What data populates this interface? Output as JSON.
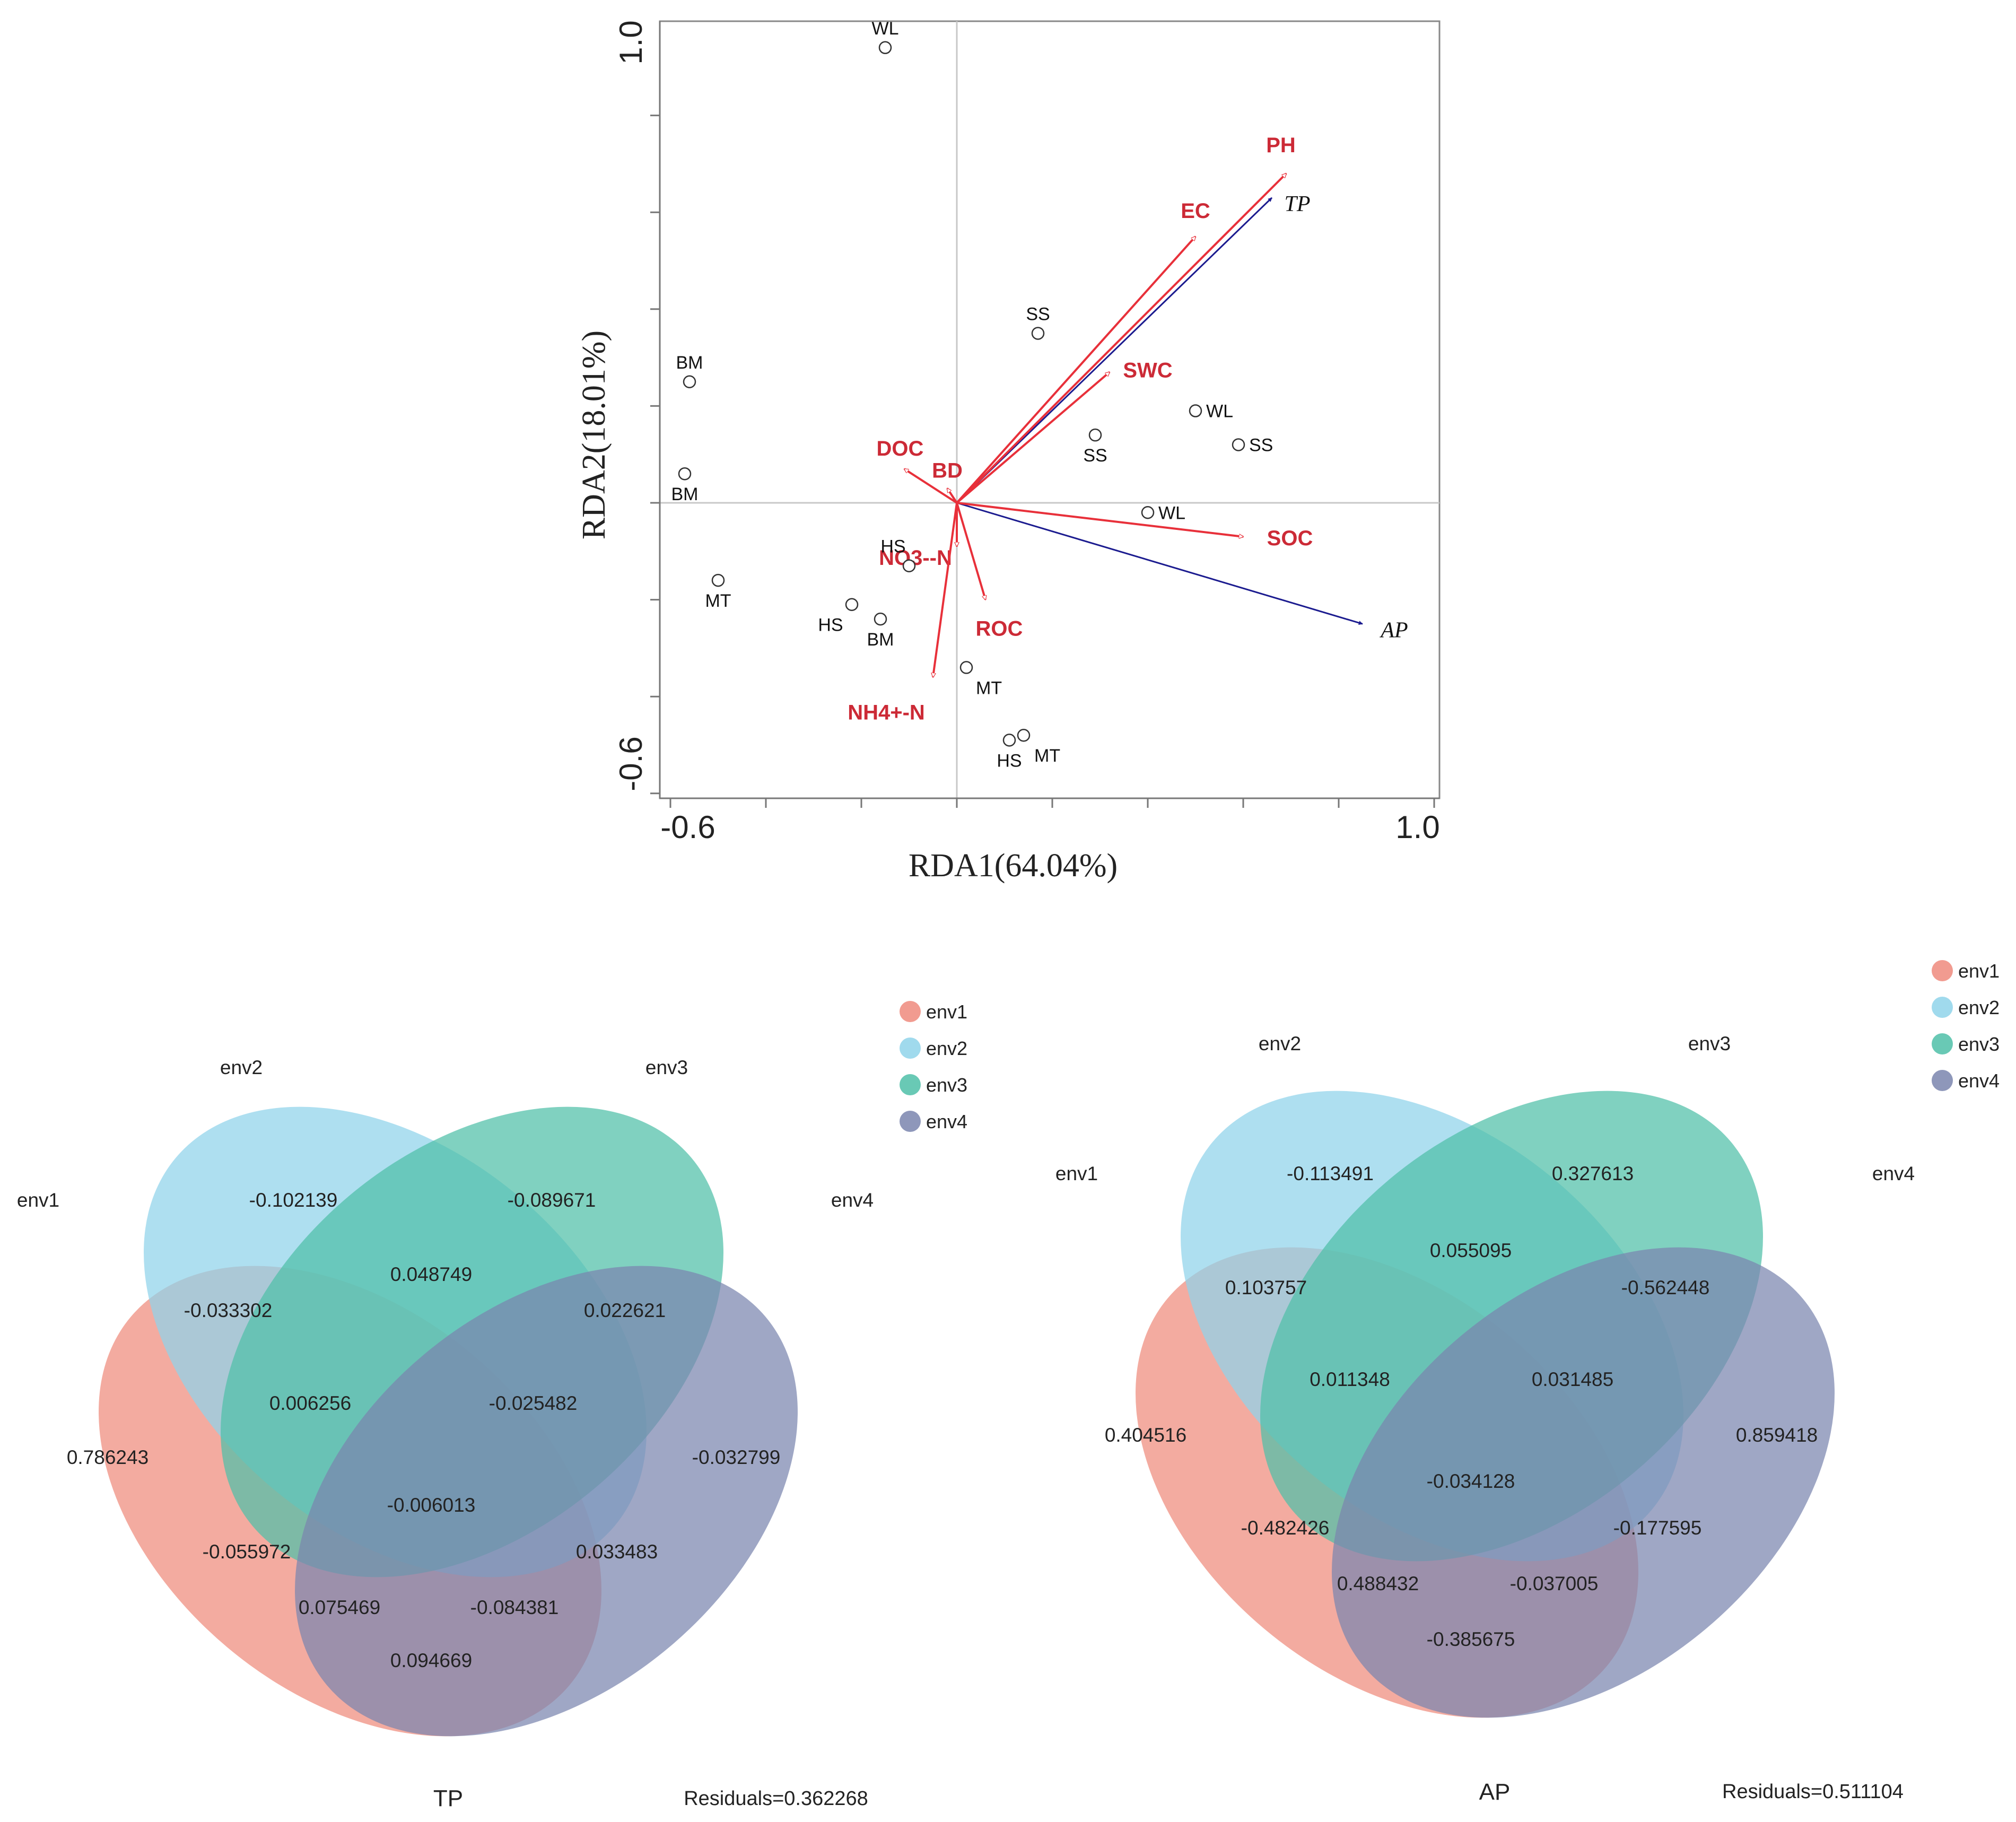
{
  "chart_data": [
    {
      "type": "scatter",
      "subtype": "rda_biplot",
      "xlabel": "RDA1(64.04%)",
      "ylabel": "RDA2(18.01%)",
      "xlim": [
        -0.6,
        1.0
      ],
      "ylim": [
        -0.6,
        1.0
      ],
      "x_ticks": [
        "-0.6",
        "1.0"
      ],
      "y_ticks": [
        "-0.6",
        "1.0"
      ],
      "sites": [
        {
          "label": "WL",
          "x": -0.15,
          "y": 0.94
        },
        {
          "label": "SS",
          "x": 0.17,
          "y": 0.35
        },
        {
          "label": "BM",
          "x": -0.56,
          "y": 0.25
        },
        {
          "label": "WL",
          "x": 0.5,
          "y": 0.19
        },
        {
          "label": "SS",
          "x": 0.29,
          "y": 0.14
        },
        {
          "label": "SS",
          "x": 0.59,
          "y": 0.12
        },
        {
          "label": "BM",
          "x": -0.57,
          "y": 0.06
        },
        {
          "label": "WL",
          "x": 0.4,
          "y": -0.02
        },
        {
          "label": "HS",
          "x": -0.1,
          "y": -0.13
        },
        {
          "label": "MT",
          "x": -0.5,
          "y": -0.16
        },
        {
          "label": "HS",
          "x": -0.22,
          "y": -0.21
        },
        {
          "label": "BM",
          "x": -0.16,
          "y": -0.24
        },
        {
          "label": "MT",
          "x": 0.02,
          "y": -0.34
        },
        {
          "label": "HS",
          "x": 0.11,
          "y": -0.49
        },
        {
          "label": "MT",
          "x": 0.14,
          "y": -0.48
        }
      ],
      "environment_vectors": [
        {
          "label": "PH",
          "x": 0.69,
          "y": 0.68
        },
        {
          "label": "EC",
          "x": 0.5,
          "y": 0.55
        },
        {
          "label": "SWC",
          "x": 0.32,
          "y": 0.27
        },
        {
          "label": "DOC",
          "x": -0.11,
          "y": 0.07
        },
        {
          "label": "BD",
          "x": -0.02,
          "y": 0.03
        },
        {
          "label": "SOC",
          "x": 0.6,
          "y": -0.07
        },
        {
          "label": "NO3--N",
          "x": 0.0,
          "y": -0.09
        },
        {
          "label": "ROC",
          "x": 0.06,
          "y": -0.2
        },
        {
          "label": "NH4+-N",
          "x": -0.05,
          "y": -0.36
        }
      ],
      "species_vectors": [
        {
          "label": "TP",
          "x": 0.66,
          "y": 0.63
        },
        {
          "label": "AP",
          "x": 0.85,
          "y": -0.25
        }
      ],
      "colors": {
        "environment": "#e8303a",
        "species": "#1b1b8f"
      }
    },
    {
      "type": "venn",
      "title": "TP",
      "residuals_label": "Residuals=0.362268",
      "sets": [
        "env1",
        "env2",
        "env3",
        "env4"
      ],
      "colors": [
        "#ef8a7c",
        "#8fd3ea",
        "#4fbfa8",
        "#7a85ae"
      ],
      "legend": [
        "env1",
        "env2",
        "env3",
        "env4"
      ],
      "regions": {
        "only_env1": "0.786243",
        "only_env2": "-0.102139",
        "only_env3": "-0.089671",
        "only_env4": "-0.032799",
        "env1_env2": "-0.033302",
        "env2_env3": "0.048749",
        "env3_env4": "0.022621",
        "env1_env2_env3": "0.006256",
        "env2_env3_env4": "-0.025482",
        "all_four": "-0.006013",
        "env1_env3": "-0.055972",
        "env2_env4": "0.033483",
        "env1_env3_env4": "0.075469",
        "env1_env2_env4": "-0.084381",
        "env1_env4": "0.094669"
      }
    },
    {
      "type": "venn",
      "title": "AP",
      "residuals_label": "Residuals=0.511104",
      "sets": [
        "env1",
        "env2",
        "env3",
        "env4"
      ],
      "colors": [
        "#ef8a7c",
        "#8fd3ea",
        "#4fbfa8",
        "#7a85ae"
      ],
      "legend": [
        "env1",
        "env2",
        "env3",
        "env4"
      ],
      "regions": {
        "only_env1": "0.404516",
        "only_env2": "-0.113491",
        "only_env3": "0.327613",
        "only_env4": "0.859418",
        "env1_env2": "0.103757",
        "env2_env3": "0.055095",
        "env3_env4": "-0.562448",
        "env1_env2_env3": "0.011348",
        "env2_env3_env4": "0.031485",
        "all_four": "-0.034128",
        "env1_env3": "-0.482426",
        "env2_env4": "-0.177595",
        "env1_env3_env4": "0.488432",
        "env1_env2_env4": "-0.037005",
        "env1_env4": "-0.385675"
      }
    }
  ]
}
